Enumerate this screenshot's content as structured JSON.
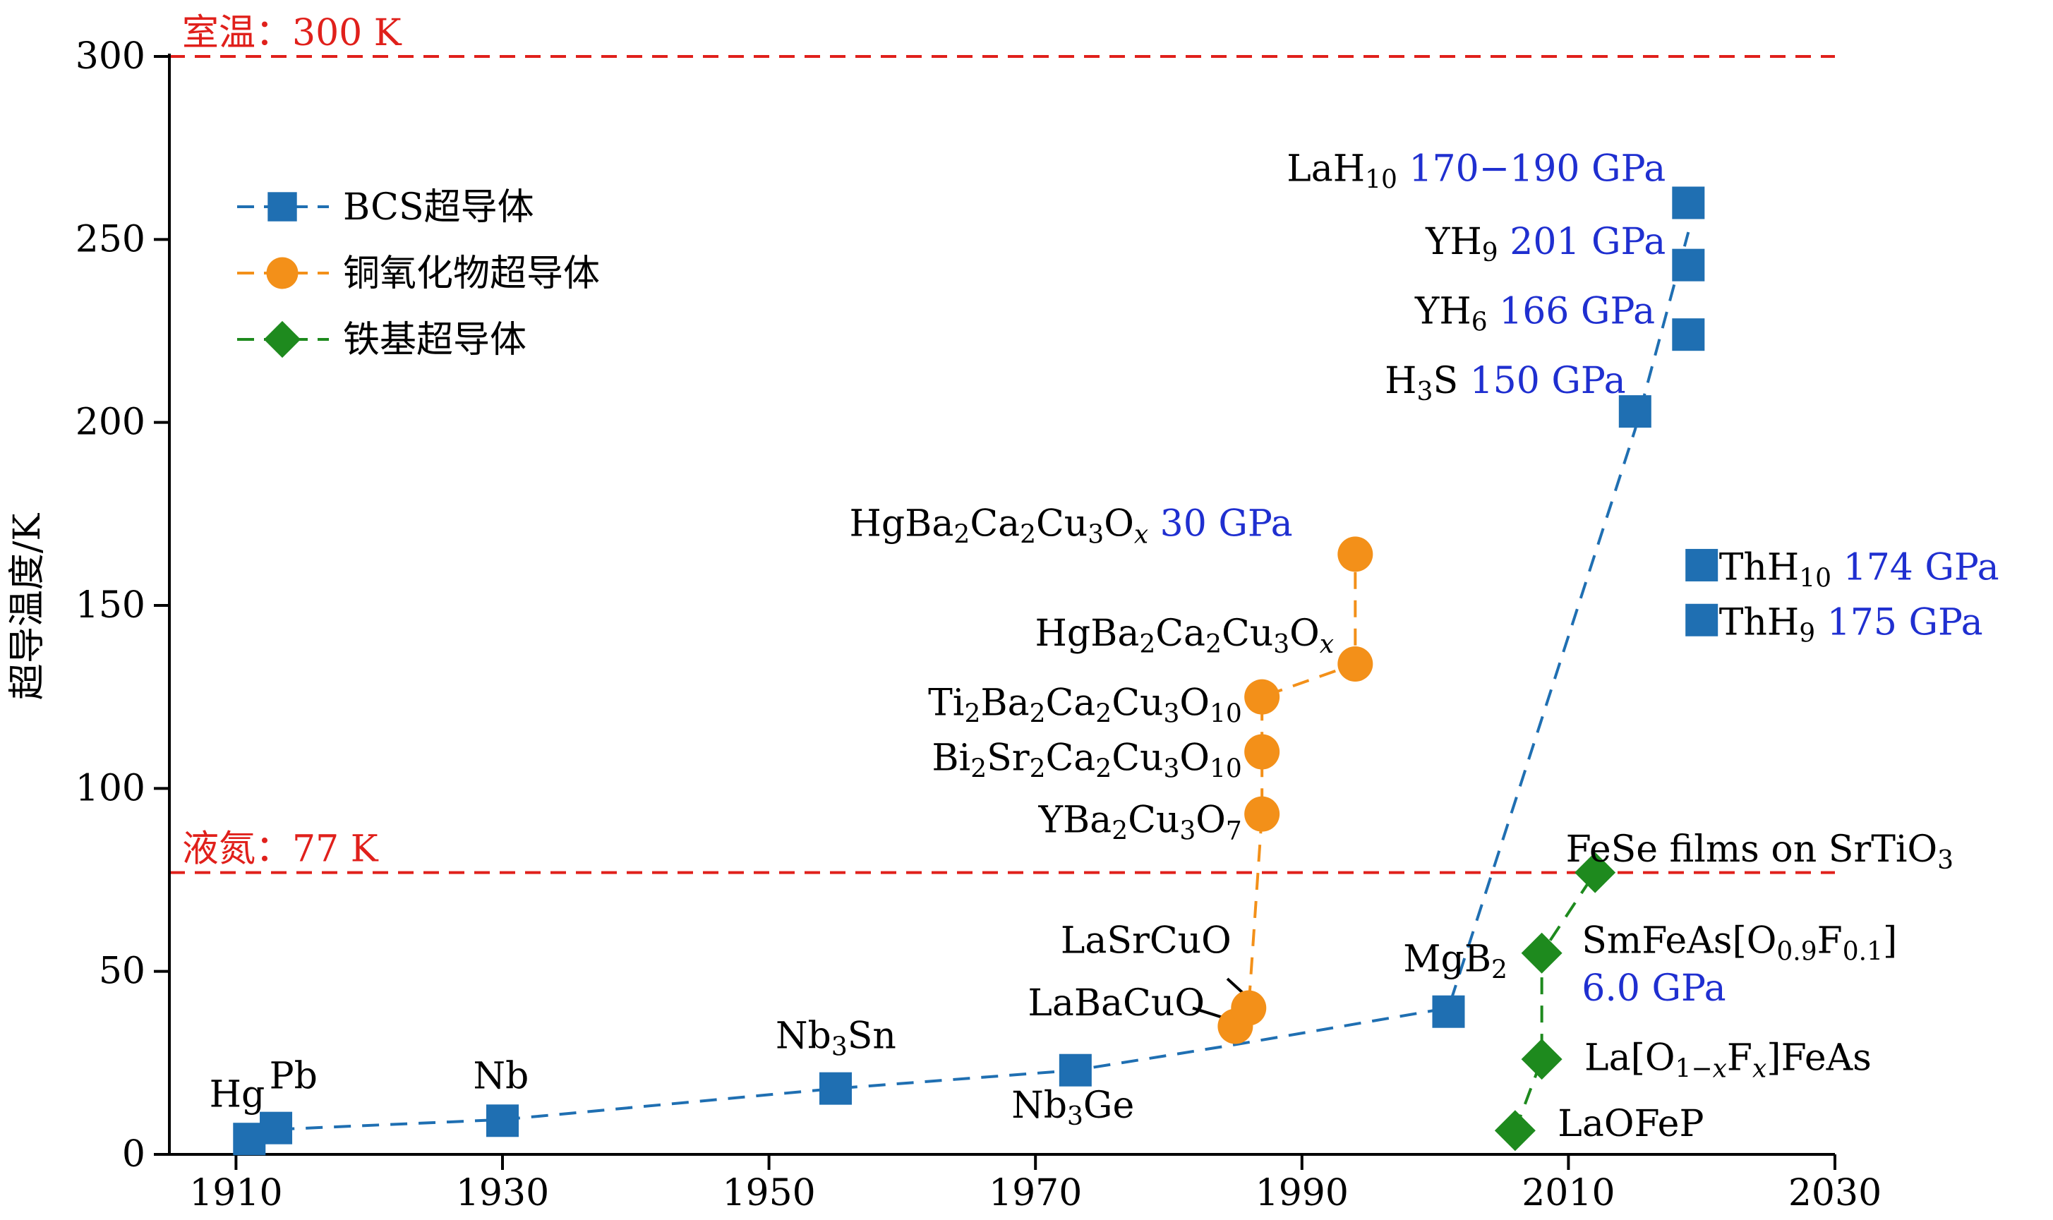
{
  "chart_data": {
    "type": "scatter",
    "title": "",
    "xlabel": "",
    "ylabel": "超导温度/K",
    "xlim": [
      1905,
      2030
    ],
    "ylim": [
      0,
      300
    ],
    "xticks": [
      1910,
      1930,
      1950,
      1970,
      1990,
      2010,
      2030
    ],
    "yticks": [
      0,
      50,
      100,
      150,
      200,
      250,
      300
    ],
    "grid": false,
    "legend_position": "top-left",
    "legend": [
      {
        "name": "BCS超导体",
        "color": "#1f6fb2",
        "marker": "square"
      },
      {
        "name": "铜氧化物超导体",
        "color": "#f39019",
        "marker": "circle"
      },
      {
        "name": "铁基超导体",
        "color": "#1e8a1e",
        "marker": "diamond"
      }
    ],
    "reference_lines": [
      {
        "y": 300,
        "label": "室温：300 K",
        "color": "#e0201b"
      },
      {
        "y": 77,
        "label": "液氮：77 K",
        "color": "#e0201b"
      }
    ],
    "series": [
      {
        "name": "BCS超导体",
        "color": "#1f6fb2",
        "marker": "square",
        "points": [
          {
            "x": 1911,
            "y": 4.2
          },
          {
            "x": 1913,
            "y": 7.2
          },
          {
            "x": 1930,
            "y": 9.2
          },
          {
            "x": 1955,
            "y": 18
          },
          {
            "x": 1973,
            "y": 23
          },
          {
            "x": 2001,
            "y": 39
          },
          {
            "x": 2015,
            "y": 203
          },
          {
            "x": 2019,
            "y": 224
          },
          {
            "x": 2019,
            "y": 243
          },
          {
            "x": 2019,
            "y": 260
          },
          {
            "x": 2020,
            "y": 161
          },
          {
            "x": 2020,
            "y": 146
          }
        ],
        "trend": [
          {
            "x": 1911,
            "y": 6.5
          },
          {
            "x": 1930,
            "y": 9.5
          },
          {
            "x": 1955,
            "y": 18
          },
          {
            "x": 1973,
            "y": 23
          },
          {
            "x": 1985,
            "y": 30
          },
          {
            "x": 2001,
            "y": 40
          },
          {
            "x": 2015,
            "y": 198
          },
          {
            "x": 2019,
            "y": 252
          }
        ]
      },
      {
        "name": "铜氧化物超导体",
        "color": "#f39019",
        "marker": "circle",
        "points": [
          {
            "x": 1985,
            "y": 35
          },
          {
            "x": 1986,
            "y": 40
          },
          {
            "x": 1987,
            "y": 93
          },
          {
            "x": 1987,
            "y": 110
          },
          {
            "x": 1987,
            "y": 125
          },
          {
            "x": 1994,
            "y": 134
          },
          {
            "x": 1994,
            "y": 164
          }
        ],
        "trend": [
          {
            "x": 1985,
            "y": 35
          },
          {
            "x": 1986,
            "y": 40
          },
          {
            "x": 1987,
            "y": 93
          },
          {
            "x": 1987,
            "y": 110
          },
          {
            "x": 1987,
            "y": 125
          },
          {
            "x": 1994,
            "y": 134
          },
          {
            "x": 1994,
            "y": 164
          }
        ]
      },
      {
        "name": "铁基超导体",
        "color": "#1e8a1e",
        "marker": "diamond",
        "points": [
          {
            "x": 2006,
            "y": 6.5
          },
          {
            "x": 2008,
            "y": 26
          },
          {
            "x": 2008,
            "y": 55
          },
          {
            "x": 2012,
            "y": 77
          }
        ],
        "trend": [
          {
            "x": 2006,
            "y": 6.5
          },
          {
            "x": 2008,
            "y": 26
          },
          {
            "x": 2008,
            "y": 55
          },
          {
            "x": 2012,
            "y": 77
          }
        ]
      }
    ],
    "annotations": [
      {
        "x": 1908,
        "y": 13,
        "anchor": "start",
        "parts": [
          {
            "t": "Hg"
          }
        ]
      },
      {
        "x": 1912.5,
        "y": 18,
        "anchor": "start",
        "parts": [
          {
            "t": "Pb"
          }
        ]
      },
      {
        "x": 1927.8,
        "y": 18,
        "anchor": "start",
        "parts": [
          {
            "t": "Nb"
          }
        ]
      },
      {
        "x": 1950.5,
        "y": 29,
        "anchor": "start",
        "parts": [
          {
            "t": "Nb"
          },
          {
            "t": "3",
            "s": "sub"
          },
          {
            "t": "Sn"
          }
        ]
      },
      {
        "x": 1968.2,
        "y": 10,
        "anchor": "start",
        "parts": [
          {
            "t": "Nb"
          },
          {
            "t": "3",
            "s": "sub"
          },
          {
            "t": "Ge"
          }
        ]
      },
      {
        "x": 1997.6,
        "y": 50,
        "anchor": "start",
        "parts": [
          {
            "t": "MgB"
          },
          {
            "t": "2",
            "s": "sub"
          }
        ]
      },
      {
        "x": 1984.7,
        "y": 55,
        "anchor": "end",
        "parts": [
          {
            "t": "LaSrCuO"
          }
        ]
      },
      {
        "x": 1982.7,
        "y": 38,
        "anchor": "end",
        "parts": [
          {
            "t": "LaBaCuO"
          }
        ]
      },
      {
        "x": 1985.5,
        "y": 88,
        "anchor": "end",
        "parts": [
          {
            "t": "YBa"
          },
          {
            "t": "2",
            "s": "sub"
          },
          {
            "t": "Cu"
          },
          {
            "t": "3",
            "s": "sub"
          },
          {
            "t": "O"
          },
          {
            "t": "7",
            "s": "sub"
          }
        ]
      },
      {
        "x": 1985.5,
        "y": 105,
        "anchor": "end",
        "parts": [
          {
            "t": "Bi"
          },
          {
            "t": "2",
            "s": "sub"
          },
          {
            "t": "Sr"
          },
          {
            "t": "2",
            "s": "sub"
          },
          {
            "t": "Ca"
          },
          {
            "t": "2",
            "s": "sub"
          },
          {
            "t": "Cu"
          },
          {
            "t": "3",
            "s": "sub"
          },
          {
            "t": "O"
          },
          {
            "t": "10",
            "s": "sub"
          }
        ]
      },
      {
        "x": 1985.5,
        "y": 120,
        "anchor": "end",
        "parts": [
          {
            "t": "Ti"
          },
          {
            "t": "2",
            "s": "sub"
          },
          {
            "t": "Ba"
          },
          {
            "t": "2",
            "s": "sub"
          },
          {
            "t": "Ca"
          },
          {
            "t": "2",
            "s": "sub"
          },
          {
            "t": "Cu"
          },
          {
            "t": "3",
            "s": "sub"
          },
          {
            "t": "O"
          },
          {
            "t": "10",
            "s": "sub"
          }
        ]
      },
      {
        "x": 1992.4,
        "y": 139,
        "anchor": "end",
        "parts": [
          {
            "t": "HgBa"
          },
          {
            "t": "2",
            "s": "sub"
          },
          {
            "t": "Ca"
          },
          {
            "t": "2",
            "s": "sub"
          },
          {
            "t": "Cu"
          },
          {
            "t": "3",
            "s": "sub"
          },
          {
            "t": "O"
          },
          {
            "t": "x",
            "s": "subi"
          }
        ]
      },
      {
        "x": 1989.3,
        "y": 169,
        "anchor": "end",
        "parts": [
          {
            "t": "HgBa"
          },
          {
            "t": "2",
            "s": "sub"
          },
          {
            "t": "Ca"
          },
          {
            "t": "2",
            "s": "sub"
          },
          {
            "t": "Cu"
          },
          {
            "t": "3",
            "s": "sub"
          },
          {
            "t": "O"
          },
          {
            "t": "x",
            "s": "subi"
          },
          {
            "t": " 30 GPa",
            "c": "#1f2fd0"
          }
        ]
      },
      {
        "x": 2014.3,
        "y": 208,
        "anchor": "end",
        "parts": [
          {
            "t": "H"
          },
          {
            "t": "3",
            "s": "sub"
          },
          {
            "t": "S "
          },
          {
            "t": "150 GPa",
            "c": "#1f2fd0"
          }
        ]
      },
      {
        "x": 2016.5,
        "y": 227,
        "anchor": "end",
        "parts": [
          {
            "t": "YH"
          },
          {
            "t": "6",
            "s": "sub"
          },
          {
            "t": " "
          },
          {
            "t": "166 GPa",
            "c": "#1f2fd0"
          }
        ]
      },
      {
        "x": 2017.3,
        "y": 246,
        "anchor": "end",
        "parts": [
          {
            "t": "YH"
          },
          {
            "t": "9",
            "s": "sub"
          },
          {
            "t": " "
          },
          {
            "t": "201 GPa",
            "c": "#1f2fd0"
          }
        ]
      },
      {
        "x": 2017.3,
        "y": 266,
        "anchor": "end",
        "parts": [
          {
            "t": "LaH"
          },
          {
            "t": "10",
            "s": "sub"
          },
          {
            "t": " "
          },
          {
            "t": "170−190 GPa",
            "c": "#1f2fd0"
          }
        ]
      },
      {
        "x": 2021.3,
        "y": 157,
        "anchor": "start",
        "parts": [
          {
            "t": "ThH"
          },
          {
            "t": "10",
            "s": "sub"
          },
          {
            "t": " "
          },
          {
            "t": "174 GPa",
            "c": "#1f2fd0"
          }
        ]
      },
      {
        "x": 2021.3,
        "y": 142,
        "anchor": "start",
        "parts": [
          {
            "t": "ThH"
          },
          {
            "t": "9",
            "s": "sub"
          },
          {
            "t": " "
          },
          {
            "t": "175 GPa",
            "c": "#1f2fd0"
          }
        ]
      },
      {
        "x": 2009.8,
        "y": 80,
        "anchor": "start",
        "parts": [
          {
            "t": "FeSe films on SrTiO"
          },
          {
            "t": "3",
            "s": "sub"
          }
        ]
      },
      {
        "x": 2011.0,
        "y": 55,
        "anchor": "start",
        "parts": [
          {
            "t": "SmFeAs[O"
          },
          {
            "t": "0.9",
            "s": "sub"
          },
          {
            "t": "F"
          },
          {
            "t": "0.1",
            "s": "sub"
          },
          {
            "t": "]"
          }
        ]
      },
      {
        "x": 2011.0,
        "y": 42,
        "anchor": "start",
        "parts": [
          {
            "t": "6.0 GPa",
            "c": "#1f2fd0"
          }
        ]
      },
      {
        "x": 2011.2,
        "y": 23,
        "anchor": "start",
        "parts": [
          {
            "t": "La[O"
          },
          {
            "t": "1−",
            "s": "sub"
          },
          {
            "t": "x",
            "s": "subi"
          },
          {
            "t": "F"
          },
          {
            "t": "x",
            "s": "subi"
          },
          {
            "t": "]FeAs"
          }
        ]
      },
      {
        "x": 2009.2,
        "y": 5,
        "anchor": "start",
        "parts": [
          {
            "t": "LaOFeP"
          }
        ]
      }
    ],
    "leaders": [
      {
        "from": [
          1984.4,
          48
        ],
        "to": [
          1986.2,
          42
        ]
      },
      {
        "from": [
          1981.8,
          40
        ],
        "to": [
          1984.4,
          37
        ]
      }
    ]
  }
}
